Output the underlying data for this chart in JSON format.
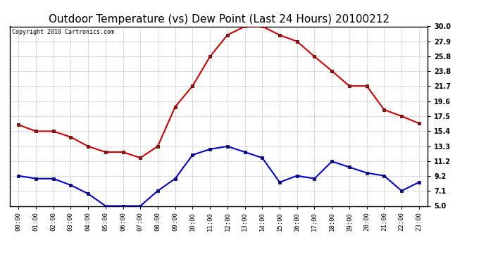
{
  "title": "Outdoor Temperature (vs) Dew Point (Last 24 Hours) 20100212",
  "copyright": "Copyright 2010 Cartronics.com",
  "hours": [
    "00:00",
    "01:00",
    "02:00",
    "03:00",
    "04:00",
    "05:00",
    "06:00",
    "07:00",
    "08:00",
    "09:00",
    "10:00",
    "11:00",
    "12:00",
    "13:00",
    "14:00",
    "15:00",
    "16:00",
    "17:00",
    "18:00",
    "19:00",
    "20:00",
    "21:00",
    "22:00",
    "23:00"
  ],
  "temp": [
    16.3,
    15.4,
    15.4,
    14.6,
    13.3,
    12.5,
    12.5,
    11.7,
    13.3,
    18.8,
    21.7,
    25.8,
    28.8,
    30.0,
    30.0,
    28.8,
    27.9,
    25.8,
    23.8,
    21.7,
    21.7,
    18.4,
    17.5,
    16.5
  ],
  "dewpoint": [
    9.2,
    8.8,
    8.8,
    7.9,
    6.7,
    5.0,
    5.0,
    5.0,
    7.1,
    8.8,
    12.1,
    12.9,
    13.3,
    12.5,
    11.7,
    8.3,
    9.2,
    8.8,
    11.2,
    10.4,
    9.6,
    9.2,
    7.1,
    8.3
  ],
  "temp_color": "#cc0000",
  "dewpoint_color": "#0000cc",
  "bg_color": "#ffffff",
  "plot_bg_color": "#ffffff",
  "grid_color": "#aaaaaa",
  "ylim": [
    5.0,
    30.0
  ],
  "yticks": [
    5.0,
    7.1,
    9.2,
    11.2,
    13.3,
    15.4,
    17.5,
    19.6,
    21.7,
    23.8,
    25.8,
    27.9,
    30.0
  ],
  "title_fontsize": 11,
  "copyright_fontsize": 6,
  "markersize": 3,
  "linewidth": 1.5
}
